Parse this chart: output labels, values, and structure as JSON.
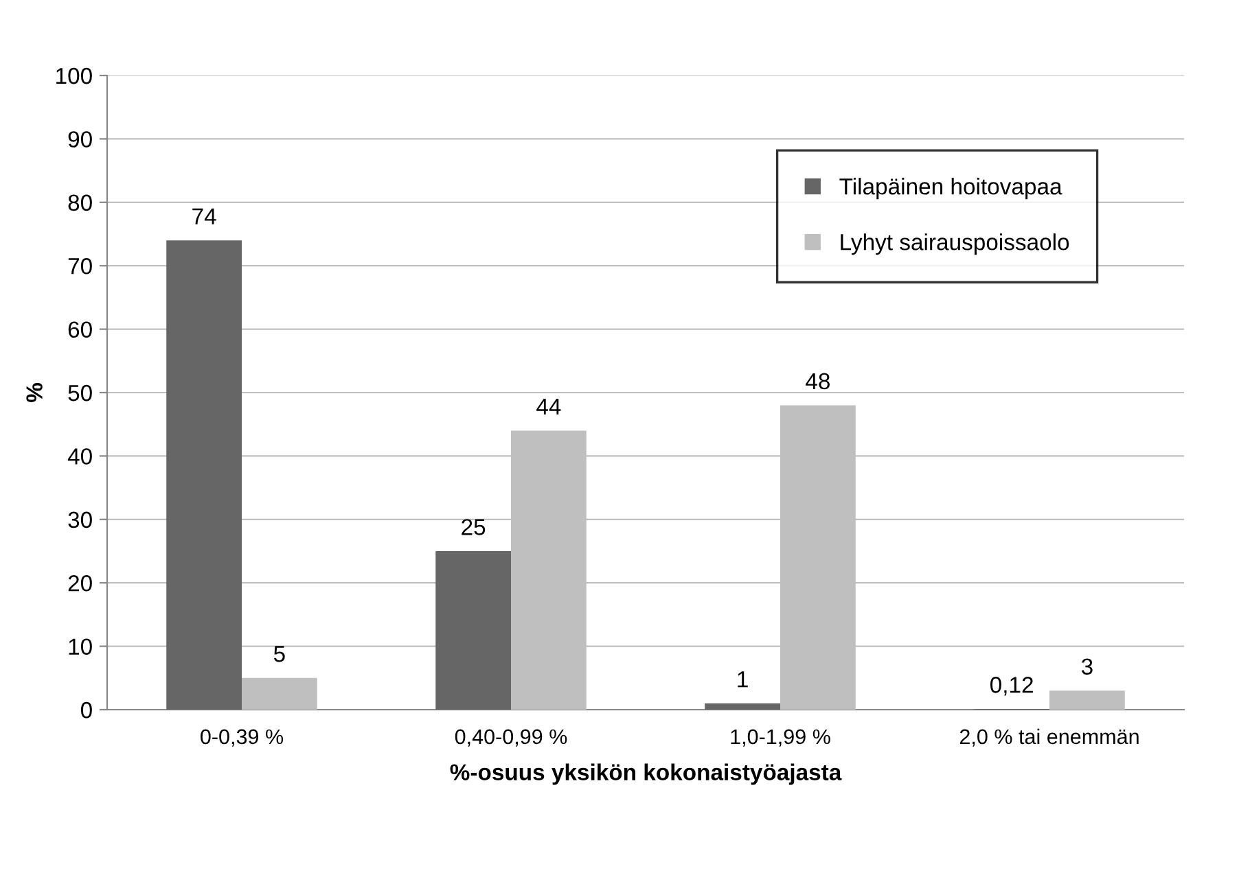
{
  "chart_data": {
    "type": "bar",
    "xlabel": "%-osuus yksikön kokonaistyöajasta",
    "ylabel": "%",
    "categories": [
      "0-0,39 %",
      "0,40-0,99 %",
      "1,0-1,99 %",
      "2,0 % tai enemmän"
    ],
    "series": [
      {
        "name": "Tilapäinen hoitovapaa",
        "color": "#666666",
        "values": [
          74,
          25,
          1,
          0.12
        ],
        "value_labels": [
          "74",
          "25",
          "1",
          "0,12"
        ]
      },
      {
        "name": "Lyhyt sairauspoissaolo",
        "color": "#bfbfbf",
        "values": [
          5,
          44,
          48,
          3
        ],
        "value_labels": [
          "5",
          "44",
          "48",
          "3"
        ]
      }
    ],
    "ylim": [
      0,
      100
    ],
    "yticks": [
      0,
      10,
      20,
      30,
      40,
      50,
      60,
      70,
      80,
      90,
      100
    ],
    "grid": "y",
    "legend": "top right"
  }
}
